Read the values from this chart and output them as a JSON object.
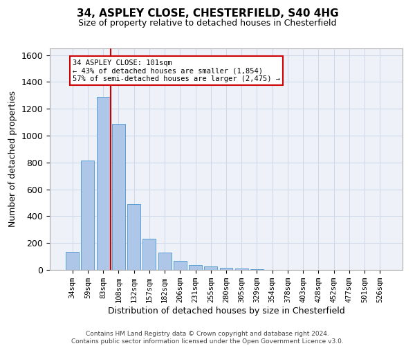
{
  "title_line1": "34, ASPLEY CLOSE, CHESTERFIELD, S40 4HG",
  "title_line2": "Size of property relative to detached houses in Chesterfield",
  "xlabel": "Distribution of detached houses by size in Chesterfield",
  "ylabel": "Number of detached properties",
  "categories": [
    "34sqm",
    "59sqm",
    "83sqm",
    "108sqm",
    "132sqm",
    "157sqm",
    "182sqm",
    "206sqm",
    "231sqm",
    "255sqm",
    "280sqm",
    "305sqm",
    "329sqm",
    "354sqm",
    "378sqm",
    "403sqm",
    "428sqm",
    "452sqm",
    "477sqm",
    "501sqm",
    "526sqm"
  ],
  "bar_values": [
    135,
    815,
    1290,
    1090,
    490,
    230,
    130,
    65,
    37,
    25,
    15,
    8,
    3,
    1,
    0,
    0,
    0,
    0,
    0,
    0,
    0
  ],
  "bar_color": "#aec6e8",
  "bar_edge_color": "#5a9fd4",
  "vline_color": "#cc0000",
  "annotation_text": "34 ASPLEY CLOSE: 101sqm\n← 43% of detached houses are smaller (1,854)\n57% of semi-detached houses are larger (2,475) →",
  "annotation_box_color": "#ffffff",
  "annotation_box_edge": "#cc0000",
  "ylim": [
    0,
    1650
  ],
  "yticks": [
    0,
    200,
    400,
    600,
    800,
    1000,
    1200,
    1400,
    1600
  ],
  "grid_color": "#d0d8e8",
  "background_color": "#eef2f8",
  "footer_line1": "Contains HM Land Registry data © Crown copyright and database right 2024.",
  "footer_line2": "Contains public sector information licensed under the Open Government Licence v3.0."
}
